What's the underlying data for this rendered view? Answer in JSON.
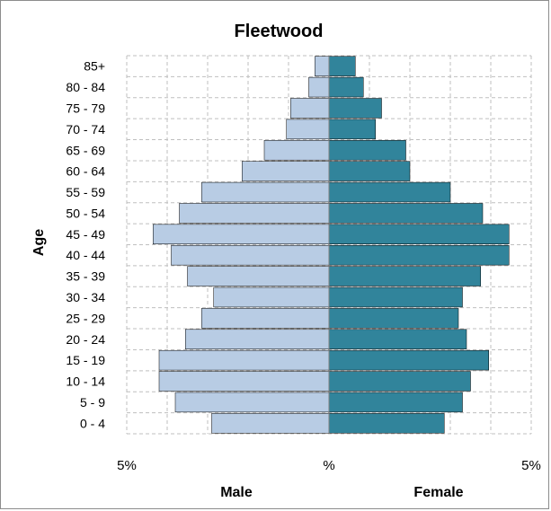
{
  "chart_data": {
    "type": "bar",
    "orientation": "horizontal",
    "layout": "population-pyramid",
    "title": "Fleetwood",
    "ylabel": "Age",
    "categories": [
      "0 - 4",
      "5 - 9",
      "10 - 14",
      "15 - 19",
      "20 - 24",
      "25 - 29",
      "30 - 34",
      "35 - 39",
      "40 - 44",
      "45 - 49",
      "50 - 54",
      "55 - 59",
      "60 - 64",
      "65 - 69",
      "70 - 74",
      "75 - 79",
      "80 - 84",
      "85+"
    ],
    "series": [
      {
        "name": "Male",
        "side": "left",
        "color": "#b8cce4",
        "values": [
          2.9,
          3.8,
          4.2,
          4.2,
          3.55,
          3.15,
          2.85,
          3.5,
          3.9,
          4.35,
          3.7,
          3.15,
          2.15,
          1.6,
          1.05,
          0.95,
          0.5,
          0.35
        ]
      },
      {
        "name": "Female",
        "side": "right",
        "color": "#31849b",
        "values": [
          2.85,
          3.3,
          3.5,
          3.95,
          3.4,
          3.2,
          3.3,
          3.75,
          4.45,
          4.45,
          3.8,
          3.0,
          2.0,
          1.9,
          1.15,
          1.3,
          0.85,
          0.65
        ]
      }
    ],
    "xlim": [
      -5,
      5
    ],
    "xticks": [
      "5%",
      "%",
      "5%"
    ],
    "x_axis_labels": {
      "left": "Male",
      "right": "Female"
    },
    "bar_outline_color": "#000000",
    "grid": true
  }
}
